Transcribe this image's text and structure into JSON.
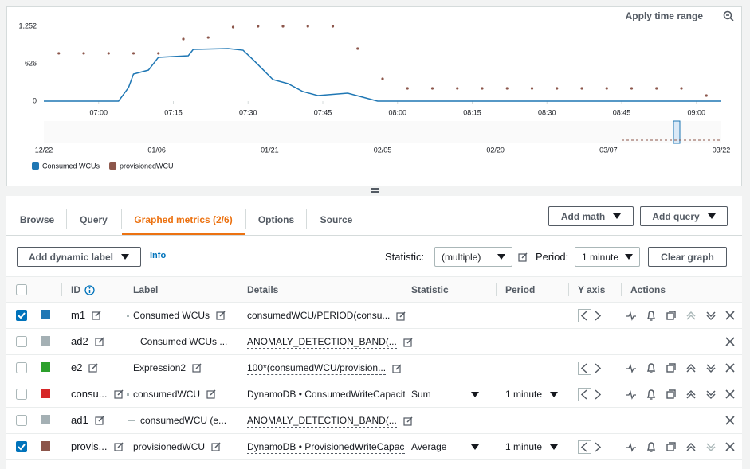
{
  "header": {
    "apply_time_range": "Apply time range"
  },
  "chart_data": {
    "type": "line",
    "xlim": [
      "06:49",
      "09:05"
    ],
    "xticks": [
      "07:00",
      "07:15",
      "07:30",
      "07:45",
      "08:00",
      "08:15",
      "08:30",
      "08:45",
      "09:00"
    ],
    "ylim": [
      0,
      1252
    ],
    "yticks": [
      0,
      626,
      {
        "value": 1252,
        "label": "1,252"
      }
    ],
    "grid": false,
    "series": [
      {
        "name": "Consumed WCUs",
        "color": "#1f77b4",
        "mode": "lines",
        "x": [
          "06:49",
          "07:04",
          "07:06",
          "07:07",
          "07:10",
          "07:12",
          "07:18",
          "07:19",
          "07:26",
          "07:29",
          "07:31",
          "07:35",
          "07:38",
          "07:41",
          "07:44",
          "07:50",
          "07:53",
          "07:56",
          "09:05"
        ],
        "values": [
          0,
          0,
          226,
          453,
          519,
          733,
          759,
          866,
          879,
          852,
          693,
          360,
          293,
          160,
          93,
          133,
          67,
          0,
          0
        ]
      },
      {
        "name": "provisionedWCU",
        "color": "#8c564b",
        "mode": "markers",
        "x": [
          "06:52",
          "06:57",
          "07:02",
          "07:07",
          "07:12",
          "07:17",
          "07:22",
          "07:27",
          "07:32",
          "07:37",
          "07:42",
          "07:47",
          "07:52",
          "07:57",
          "08:02",
          "08:07",
          "08:12",
          "08:17",
          "08:22",
          "08:27",
          "08:32",
          "08:37",
          "08:42",
          "08:47",
          "08:52",
          "08:57",
          "09:02"
        ],
        "values": [
          800,
          800,
          800,
          800,
          800,
          1039,
          1065,
          1239,
          1252,
          1252,
          1252,
          1252,
          879,
          373,
          213,
          213,
          213,
          213,
          213,
          213,
          213,
          213,
          213,
          213,
          213,
          213,
          93
        ]
      }
    ]
  },
  "navigator": {
    "labels": [
      "12/22",
      "01/06",
      "01/21",
      "02/05",
      "02/20",
      "03/07",
      "03/22"
    ]
  },
  "tabs": {
    "items": [
      "Browse",
      "Query",
      "Graphed metrics (2/6)",
      "Options",
      "Source"
    ],
    "active": 2
  },
  "buttons": {
    "add_math": "Add math",
    "add_query": "Add query"
  },
  "toolbar": {
    "add_dynamic_label": "Add dynamic label",
    "info": "Info",
    "statistic_label": "Statistic:",
    "statistic_value": "(multiple)",
    "period_label": "Period:",
    "period_value": "1 minute",
    "clear_graph": "Clear graph"
  },
  "table": {
    "columns": [
      "ID",
      "Label",
      "Details",
      "Statistic",
      "Period",
      "Y axis",
      "Actions"
    ],
    "rows": [
      {
        "checked": true,
        "color": "#1f77b4",
        "id": "m1",
        "label": "Consumed WCUs",
        "details": "consumedWCU/PERIOD(consu...",
        "child": false,
        "controls": true
      },
      {
        "checked": false,
        "color": "#a4b0b4",
        "id": "ad2",
        "label": "Consumed WCUs ...",
        "details": "ANOMALY_DETECTION_BAND(...",
        "child": true,
        "controls": false
      },
      {
        "checked": false,
        "color": "#2ca02c",
        "id": "e2",
        "label": "Expression2",
        "details": "100*(consumedWCU/provision...",
        "child": false,
        "controls": true
      },
      {
        "checked": false,
        "color": "#d62728",
        "id": "consu...",
        "label": "consumedWCU",
        "details": "DynamoDB • ConsumedWriteCapacity",
        "statistic": "Sum",
        "period": "1 minute",
        "child": false,
        "controls": true
      },
      {
        "checked": false,
        "color": "#a4b0b4",
        "id": "ad1",
        "label": "consumedWCU (e...",
        "details": "ANOMALY_DETECTION_BAND(...",
        "child": true,
        "controls": false
      },
      {
        "checked": true,
        "color": "#8c564b",
        "id": "provis...",
        "label": "provisionedWCU",
        "details": "DynamoDB • ProvisionedWriteCapacit",
        "statistic": "Average",
        "period": "1 minute",
        "child": false,
        "controls": true
      }
    ]
  }
}
